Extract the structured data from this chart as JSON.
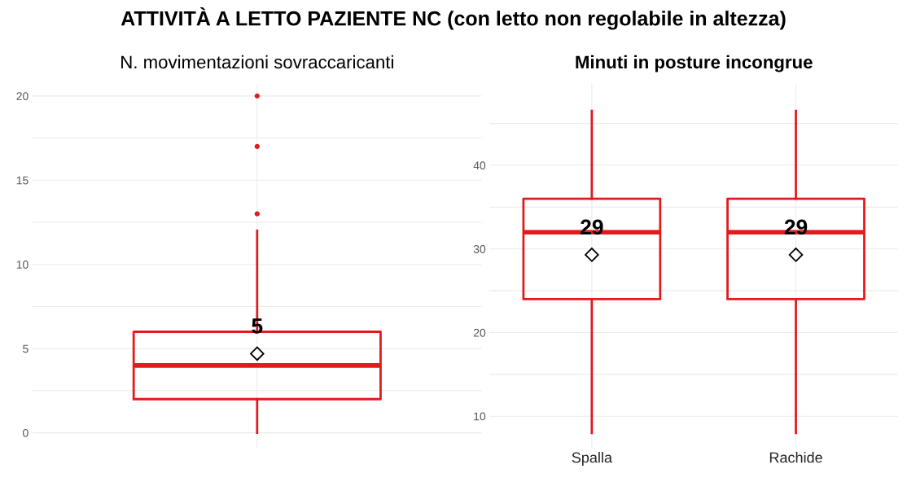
{
  "chart_data": [
    {
      "type": "box",
      "title": "N. movimentazioni sovraccaricanti",
      "annotations": [
        "ATTIVITÀ A LETTO PAZIENTE NC (con letto non regolabile in altezza)"
      ],
      "categories": [
        null
      ],
      "series": [
        {
          "color": "#e31a1c",
          "value_labels": [
            "5"
          ],
          "boxes": [
            {
              "low": 0,
              "q1": 2,
              "median": 4,
              "q3": 6,
              "high": 12,
              "mean": 4.7,
              "outliers": [
                13,
                17,
                20
              ]
            }
          ]
        }
      ],
      "ylim": [
        -0.9,
        20.7
      ],
      "yticks": [
        0,
        {
          "value": 2.5,
          "label": null
        },
        5,
        {
          "value": 7.5,
          "label": null
        },
        10,
        {
          "value": 12.5,
          "label": null
        },
        15,
        {
          "value": 17.5,
          "label": null
        },
        20
      ],
      "grid": true
    },
    {
      "type": "box",
      "title": "Minuti in posture incongrue",
      "categories": [
        "Spalla",
        "Rachide"
      ],
      "series": [
        {
          "color": "#e31a1c",
          "value_labels": [
            "29",
            "29"
          ],
          "boxes": [
            {
              "low": 8,
              "q1": 24,
              "median": 32,
              "q3": 36,
              "high": 46.5,
              "mean": 29.3
            },
            {
              "low": 8,
              "q1": 24,
              "median": 32,
              "q3": 36,
              "high": 46.5,
              "mean": 29.3
            }
          ]
        }
      ],
      "ylim": [
        6.2,
        49.7
      ],
      "yticks": [
        10,
        {
          "value": 15,
          "label": null
        },
        20,
        {
          "value": 25,
          "label": null
        },
        30,
        {
          "value": 35,
          "label": null
        },
        40,
        {
          "value": 45,
          "label": null
        }
      ],
      "grid": true
    }
  ]
}
